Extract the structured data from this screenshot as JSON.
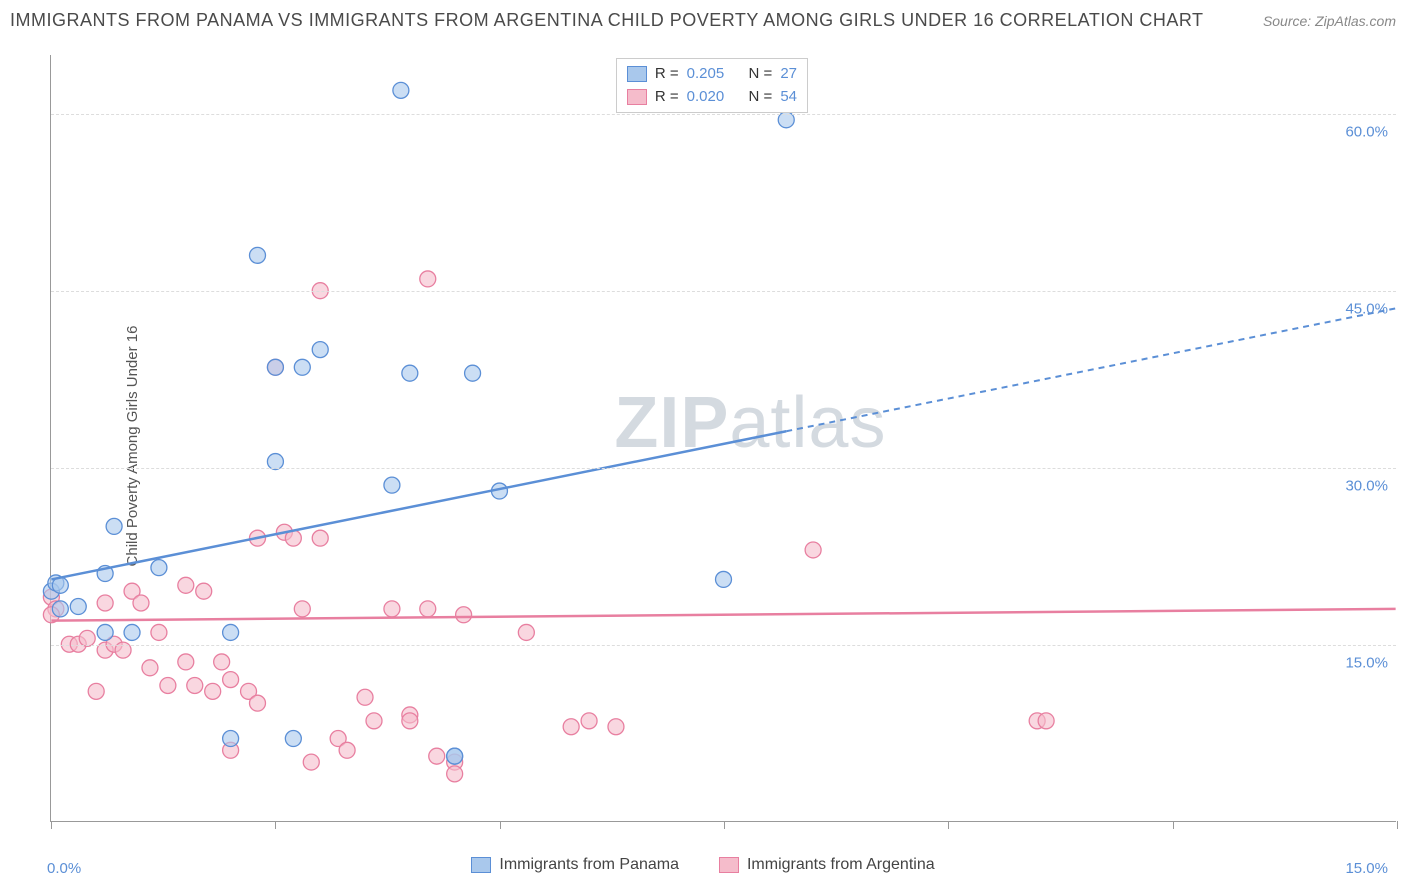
{
  "title": "IMMIGRANTS FROM PANAMA VS IMMIGRANTS FROM ARGENTINA CHILD POVERTY AMONG GIRLS UNDER 16 CORRELATION CHART",
  "source": "Source: ZipAtlas.com",
  "y_axis_label": "Child Poverty Among Girls Under 16",
  "watermark_prefix": "ZIP",
  "watermark_suffix": "atlas",
  "chart": {
    "type": "scatter",
    "x_range": [
      0,
      15
    ],
    "y_range": [
      0,
      65
    ],
    "x_ticks": [
      0,
      2.5,
      5,
      7.5,
      10,
      12.5,
      15
    ],
    "x_tick_labels": {
      "0": "0.0%",
      "15": "15.0%"
    },
    "y_gridlines": [
      15,
      30,
      45,
      60
    ],
    "y_tick_labels": {
      "15": "15.0%",
      "30": "30.0%",
      "45": "45.0%",
      "60": "60.0%"
    },
    "grid_color": "#dddddd",
    "background": "#ffffff",
    "axis_color": "#999999",
    "tick_label_color": "#5b8fd6"
  },
  "series": [
    {
      "name": "Immigrants from Panama",
      "color_fill": "#a9c8ec",
      "color_stroke": "#5b8fd6",
      "marker_radius": 8,
      "marker_opacity": 0.6,
      "r_value": "0.205",
      "n_value": "27",
      "trend": {
        "x1": 0,
        "y1": 20.5,
        "x2": 15,
        "y2": 43.5,
        "solid_until_x": 8.2
      },
      "points": [
        [
          0.0,
          19.5
        ],
        [
          0.05,
          20.2
        ],
        [
          0.1,
          20.0
        ],
        [
          0.1,
          18.0
        ],
        [
          0.3,
          18.2
        ],
        [
          0.7,
          25.0
        ],
        [
          0.6,
          21.0
        ],
        [
          0.6,
          16.0
        ],
        [
          0.9,
          16.0
        ],
        [
          1.2,
          21.5
        ],
        [
          2.0,
          16.0
        ],
        [
          2.0,
          7.0
        ],
        [
          2.3,
          48.0
        ],
        [
          2.5,
          38.5
        ],
        [
          2.8,
          38.5
        ],
        [
          2.5,
          30.5
        ],
        [
          2.7,
          7.0
        ],
        [
          3.0,
          40.0
        ],
        [
          3.8,
          28.5
        ],
        [
          3.9,
          62.0
        ],
        [
          4.0,
          38.0
        ],
        [
          4.5,
          5.5
        ],
        [
          4.5,
          5.5
        ],
        [
          4.7,
          38.0
        ],
        [
          5.0,
          28.0
        ],
        [
          7.5,
          20.5
        ],
        [
          8.2,
          59.5
        ]
      ]
    },
    {
      "name": "Immigrants from Argentina",
      "color_fill": "#f5bccb",
      "color_stroke": "#e87fa0",
      "marker_radius": 8,
      "marker_opacity": 0.6,
      "r_value": "0.020",
      "n_value": "54",
      "trend": {
        "x1": 0,
        "y1": 17.0,
        "x2": 15,
        "y2": 18.0,
        "solid_until_x": 15
      },
      "points": [
        [
          0.0,
          19.0
        ],
        [
          0.05,
          18.0
        ],
        [
          0.0,
          17.5
        ],
        [
          0.2,
          15.0
        ],
        [
          0.3,
          15.0
        ],
        [
          0.4,
          15.5
        ],
        [
          0.5,
          11.0
        ],
        [
          0.6,
          14.5
        ],
        [
          0.6,
          18.5
        ],
        [
          0.7,
          15.0
        ],
        [
          0.8,
          14.5
        ],
        [
          0.9,
          19.5
        ],
        [
          1.0,
          18.5
        ],
        [
          1.1,
          13.0
        ],
        [
          1.2,
          16.0
        ],
        [
          1.3,
          11.5
        ],
        [
          1.5,
          20.0
        ],
        [
          1.5,
          13.5
        ],
        [
          1.6,
          11.5
        ],
        [
          1.7,
          19.5
        ],
        [
          1.8,
          11.0
        ],
        [
          1.9,
          13.5
        ],
        [
          2.0,
          12.0
        ],
        [
          2.0,
          6.0
        ],
        [
          2.2,
          11.0
        ],
        [
          2.3,
          10.0
        ],
        [
          2.3,
          24.0
        ],
        [
          2.5,
          38.5
        ],
        [
          2.6,
          24.5
        ],
        [
          2.7,
          24.0
        ],
        [
          2.8,
          18.0
        ],
        [
          2.9,
          5.0
        ],
        [
          3.0,
          45.0
        ],
        [
          3.0,
          24.0
        ],
        [
          3.2,
          7.0
        ],
        [
          3.3,
          6.0
        ],
        [
          3.5,
          10.5
        ],
        [
          3.6,
          8.5
        ],
        [
          3.8,
          18.0
        ],
        [
          4.0,
          9.0
        ],
        [
          4.0,
          8.5
        ],
        [
          4.2,
          46.0
        ],
        [
          4.2,
          18.0
        ],
        [
          4.3,
          5.5
        ],
        [
          4.5,
          5.0
        ],
        [
          4.5,
          4.0
        ],
        [
          4.6,
          17.5
        ],
        [
          5.3,
          16.0
        ],
        [
          5.8,
          8.0
        ],
        [
          6.0,
          8.5
        ],
        [
          6.3,
          8.0
        ],
        [
          8.5,
          23.0
        ],
        [
          11.0,
          8.5
        ],
        [
          11.1,
          8.5
        ]
      ]
    }
  ],
  "legend_top": {
    "r_label": "R =",
    "n_label": "N ="
  },
  "legend_bottom": [
    {
      "label": "Immigrants from Panama",
      "fill": "#a9c8ec",
      "stroke": "#5b8fd6"
    },
    {
      "label": "Immigrants from Argentina",
      "fill": "#f5bccb",
      "stroke": "#e87fa0"
    }
  ]
}
